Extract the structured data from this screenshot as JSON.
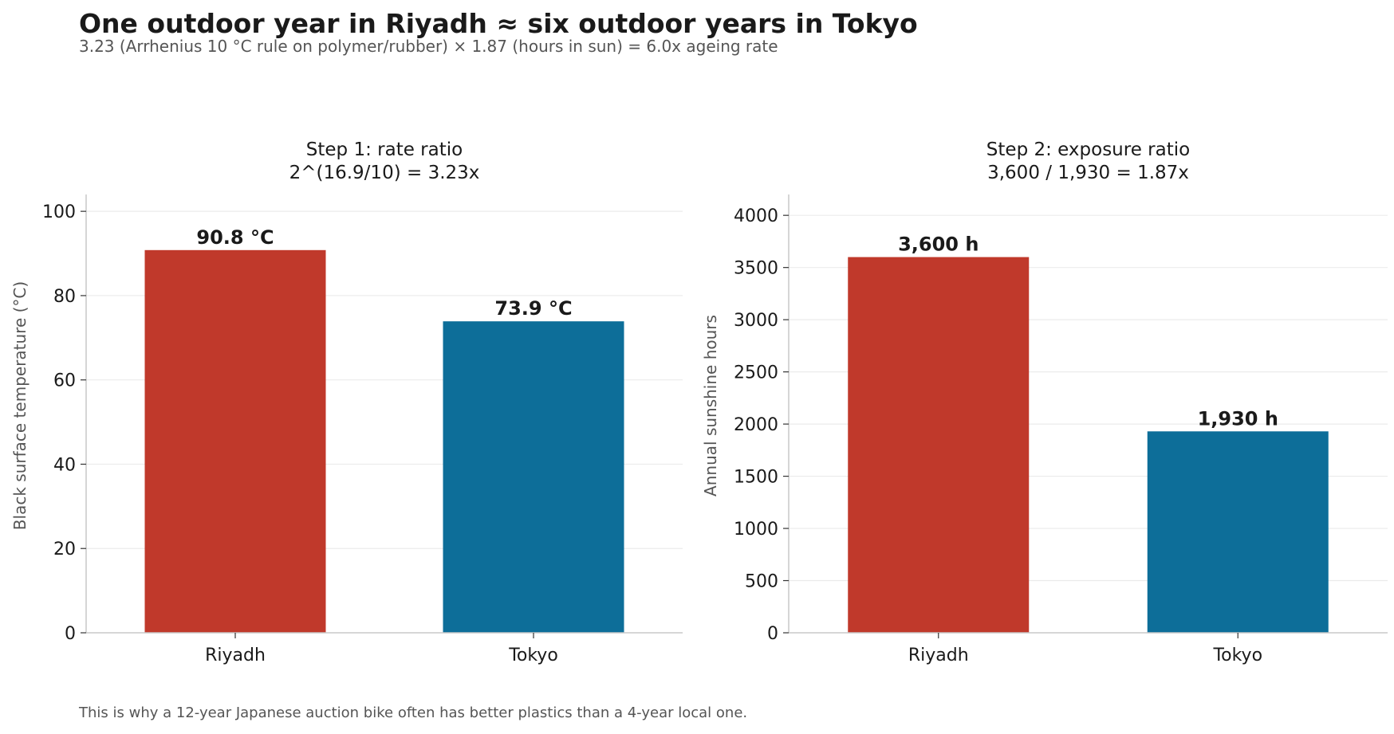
{
  "header": {
    "title": "One outdoor year in Riyadh ≈ six outdoor years in Tokyo",
    "subtitle": "3.23 (Arrhenius 10 °C rule on polymer/rubber) × 1.87 (hours in sun) = 6.0x ageing rate"
  },
  "footnote": "This is why a 12-year Japanese auction bike often has better plastics than a 4-year local one.",
  "colors": {
    "riyadh": "#c0392b",
    "tokyo": "#0d6e99"
  },
  "chart_data": [
    {
      "type": "bar",
      "title": "Step 1: rate ratio",
      "subtitle": "2^(16.9/10) = 3.23x",
      "categories": [
        "Riyadh",
        "Tokyo"
      ],
      "values": [
        90.8,
        73.9
      ],
      "value_labels": [
        "90.8 °C",
        "73.9 °C"
      ],
      "xlabel": "",
      "ylabel": "Black surface temperature (°C)",
      "ylim": [
        0,
        104
      ],
      "yticks": [
        0,
        20,
        40,
        60,
        80,
        100
      ],
      "ytick_labels": [
        "0",
        "20",
        "40",
        "60",
        "80",
        "100"
      ],
      "grid": true,
      "legend": "none"
    },
    {
      "type": "bar",
      "title": "Step 2: exposure ratio",
      "subtitle": "3,600 / 1,930 = 1.87x",
      "categories": [
        "Riyadh",
        "Tokyo"
      ],
      "values": [
        3600,
        1930
      ],
      "value_labels": [
        "3,600 h",
        "1,930 h"
      ],
      "xlabel": "",
      "ylabel": "Annual sunshine hours",
      "ylim": [
        0,
        4200
      ],
      "yticks": [
        0,
        500,
        1000,
        1500,
        2000,
        2500,
        3000,
        3500,
        4000
      ],
      "ytick_labels": [
        "0",
        "500",
        "1000",
        "1500",
        "2000",
        "2500",
        "3000",
        "3500",
        "4000"
      ],
      "grid": true,
      "legend": "none"
    }
  ]
}
